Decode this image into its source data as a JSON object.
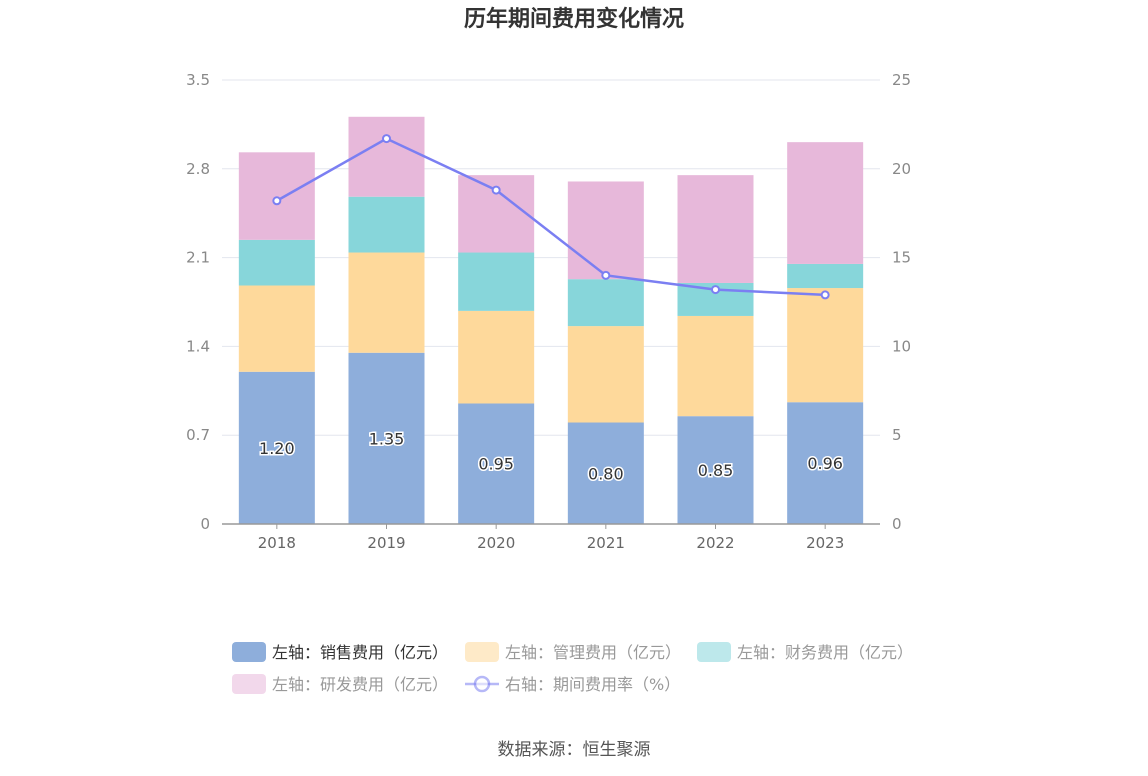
{
  "chart_data": {
    "type": "bar",
    "stacked": true,
    "title": "历年期间费用变化情况",
    "categories": [
      "2018",
      "2019",
      "2020",
      "2021",
      "2022",
      "2023"
    ],
    "left_axis": {
      "ticks": [
        "0",
        "0.7",
        "1.4",
        "2.1",
        "2.8",
        "3.5"
      ],
      "ylim": [
        0,
        3.5
      ]
    },
    "right_axis": {
      "ticks": [
        "0",
        "5",
        "10",
        "15",
        "20",
        "25"
      ],
      "ylim": [
        0,
        25
      ]
    },
    "grid": true,
    "legend_position": "bottom",
    "series": [
      {
        "name": "左轴：销售费用（亿元）",
        "axis": "left",
        "type": "bar",
        "color": "#8eaedb",
        "values": [
          1.2,
          1.35,
          0.95,
          0.8,
          0.85,
          0.96
        ],
        "labels": [
          "1.20",
          "1.35",
          "0.95",
          "0.80",
          "0.85",
          "0.96"
        ]
      },
      {
        "name": "左轴：管理费用（亿元）",
        "axis": "left",
        "type": "bar",
        "color": "#fed99b",
        "values": [
          0.68,
          0.79,
          0.73,
          0.76,
          0.79,
          0.9
        ]
      },
      {
        "name": "左轴：财务费用（亿元）",
        "axis": "left",
        "type": "bar",
        "color": "#87d6da",
        "values": [
          0.36,
          0.44,
          0.46,
          0.37,
          0.26,
          0.19
        ]
      },
      {
        "name": "左轴：研发费用（亿元）",
        "axis": "left",
        "type": "bar",
        "color": "#e7b8da",
        "values": [
          0.69,
          0.63,
          0.61,
          0.77,
          0.85,
          0.96
        ]
      },
      {
        "name": "右轴：期间费用率（%）",
        "axis": "right",
        "type": "line",
        "color": "#7b7ff2",
        "values": [
          18.2,
          21.7,
          18.8,
          14.0,
          13.2,
          12.9
        ]
      }
    ],
    "source": "数据来源：恒生聚源"
  }
}
